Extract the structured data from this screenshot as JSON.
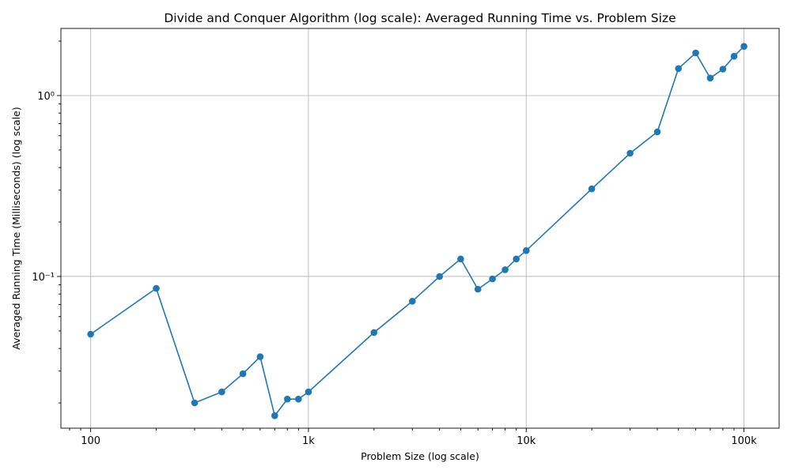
{
  "chart_data": {
    "type": "line",
    "title": "Divide and Conquer Algorithm (log scale): Averaged Running Time vs. Problem Size",
    "xlabel": "Problem Size (log scale)",
    "ylabel": "Averaged Running Time (Milliseconds) (log scale)",
    "xscale": "log",
    "yscale": "log",
    "xlim": [
      73,
      145000
    ],
    "ylim": [
      0.0145,
      2.35
    ],
    "grid": true,
    "color": "#1f77b4",
    "x_ticks": [
      {
        "value": 100,
        "label": "100"
      },
      {
        "value": 1000,
        "label": "1k"
      },
      {
        "value": 10000,
        "label": "10k"
      },
      {
        "value": 100000,
        "label": "100k"
      }
    ],
    "y_ticks": [
      {
        "value": 0.1,
        "label": "10⁻¹"
      },
      {
        "value": 1,
        "label": "10⁰"
      }
    ],
    "x": [
      100,
      200,
      300,
      400,
      500,
      600,
      700,
      800,
      900,
      1000,
      2000,
      3000,
      4000,
      5000,
      6000,
      7000,
      8000,
      9000,
      10000,
      20000,
      30000,
      40000,
      50000,
      60000,
      70000,
      80000,
      90000,
      100000
    ],
    "y": [
      0.048,
      0.086,
      0.02,
      0.023,
      0.029,
      0.036,
      0.017,
      0.021,
      0.021,
      0.023,
      0.049,
      0.073,
      0.1,
      0.125,
      0.085,
      0.097,
      0.109,
      0.125,
      0.139,
      0.305,
      0.48,
      0.63,
      1.41,
      1.72,
      1.25,
      1.4,
      1.65,
      1.87
    ]
  }
}
